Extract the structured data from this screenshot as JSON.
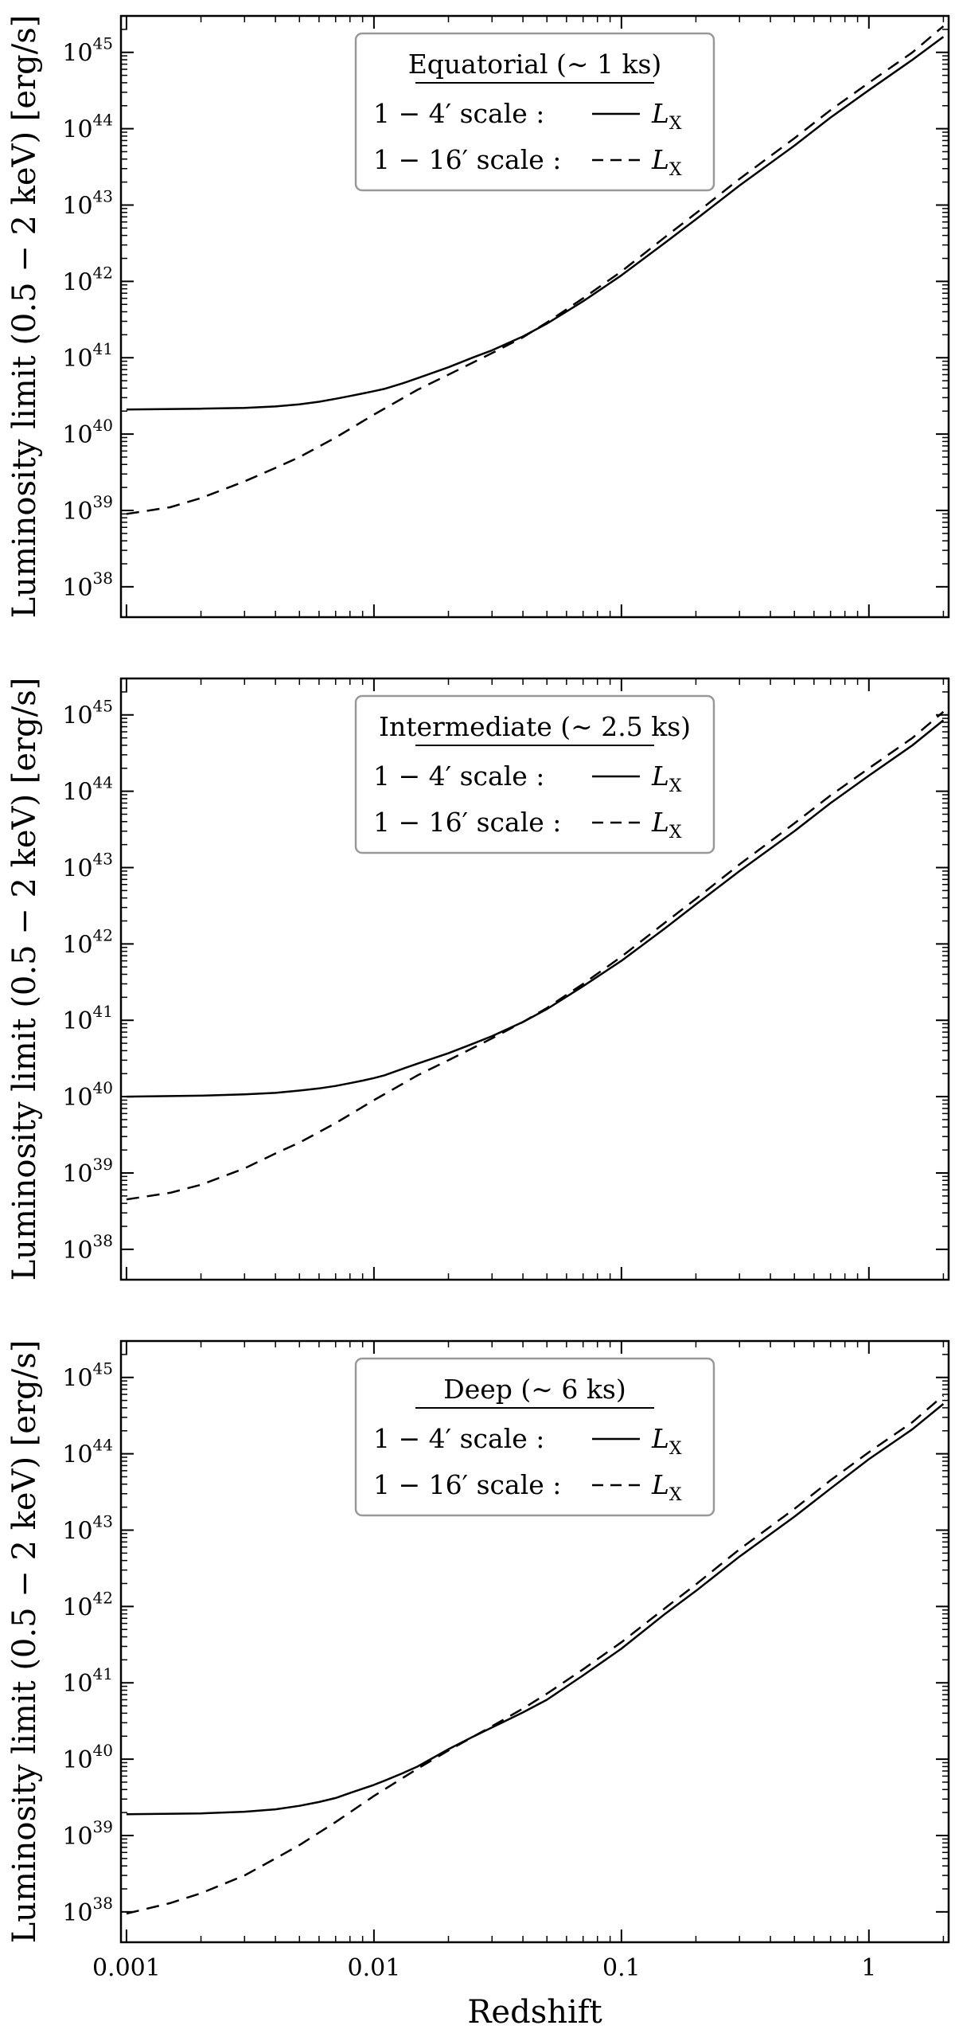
{
  "chart_data": [
    {
      "type": "line",
      "title": "Equatorial (∼ 1 ks)",
      "xlabel": "",
      "ylabel": "Luminosity limit  (0.5 − 2 keV)  [erg/s]",
      "x_scale": "log",
      "y_scale": "log",
      "xlim": [
        0.00095,
        2.1
      ],
      "ylim": [
        4e+37,
        3e+45
      ],
      "x_ticks": [
        0.001,
        0.01,
        0.1,
        1
      ],
      "x_tick_labels": [],
      "y_ticks": [
        1e+38,
        1e+39,
        1e+40,
        1e+41,
        1e+42,
        1e+43,
        1e+44,
        1e+45
      ],
      "y_tick_labels": [
        {
          "base": "10",
          "exp": "38"
        },
        {
          "base": "10",
          "exp": "39"
        },
        {
          "base": "10",
          "exp": "40"
        },
        {
          "base": "10",
          "exp": "41"
        },
        {
          "base": "10",
          "exp": "42"
        },
        {
          "base": "10",
          "exp": "43"
        },
        {
          "base": "10",
          "exp": "44"
        },
        {
          "base": "10",
          "exp": "45"
        }
      ],
      "legend_position": "top-center",
      "legend": [
        {
          "label": "1 − 4′   scale :",
          "key": "L",
          "key_sub": "X",
          "style": "solid"
        },
        {
          "label": "1 − 16′ scale :",
          "key": "L",
          "key_sub": "X",
          "style": "dashed"
        }
      ],
      "series": [
        {
          "style": "solid",
          "x": [
            0.001,
            0.002,
            0.003,
            0.004,
            0.005,
            0.006,
            0.007,
            0.008,
            0.009,
            0.01,
            0.011,
            0.013,
            0.015,
            0.02,
            0.025,
            0.03,
            0.04,
            0.05,
            0.07,
            0.1,
            0.15,
            0.2,
            0.3,
            0.5,
            0.7,
            1.0,
            1.5,
            2.0
          ],
          "y": [
            2.1e+40,
            2.15e+40,
            2.2e+40,
            2.3e+40,
            2.45e+40,
            2.65e+40,
            2.9e+40,
            3.15e+40,
            3.4e+40,
            3.65e+40,
            3.9e+40,
            4.6e+40,
            5.4e+40,
            7.5e+40,
            1e+41,
            1.25e+41,
            1.9e+41,
            2.8e+41,
            5.5e+41,
            1.2e+42,
            3.2e+42,
            6.5e+42,
            1.8e+43,
            6e+43,
            1.4e+44,
            3.2e+44,
            8e+44,
            1.6e+45
          ]
        },
        {
          "style": "dashed",
          "x": [
            0.001,
            0.0015,
            0.002,
            0.003,
            0.004,
            0.005,
            0.007,
            0.01,
            0.015,
            0.02,
            0.03,
            0.04,
            0.05,
            0.07,
            0.1,
            0.15,
            0.2,
            0.3,
            0.5,
            0.7,
            1.0,
            1.5,
            2.0
          ],
          "y": [
            9e+38,
            1.1e+39,
            1.45e+39,
            2.4e+39,
            3.6e+39,
            5e+39,
            9e+39,
            1.8e+40,
            3.8e+40,
            6e+40,
            1.15e+41,
            1.85e+41,
            2.9e+41,
            6e+41,
            1.35e+42,
            3.8e+42,
            7.8e+42,
            2.2e+43,
            7.5e+43,
            1.75e+44,
            4e+44,
            1e+45,
            2.2e+45
          ]
        }
      ]
    },
    {
      "type": "line",
      "title": "Intermediate (∼ 2.5 ks)",
      "xlabel": "",
      "ylabel": "Luminosity limit  (0.5 − 2 keV)  [erg/s]",
      "x_scale": "log",
      "y_scale": "log",
      "xlim": [
        0.00095,
        2.1
      ],
      "ylim": [
        4e+37,
        3e+45
      ],
      "x_ticks": [
        0.001,
        0.01,
        0.1,
        1
      ],
      "x_tick_labels": [],
      "y_ticks": [
        1e+38,
        1e+39,
        1e+40,
        1e+41,
        1e+42,
        1e+43,
        1e+44,
        1e+45
      ],
      "y_tick_labels": [
        {
          "base": "10",
          "exp": "38"
        },
        {
          "base": "10",
          "exp": "39"
        },
        {
          "base": "10",
          "exp": "40"
        },
        {
          "base": "10",
          "exp": "41"
        },
        {
          "base": "10",
          "exp": "42"
        },
        {
          "base": "10",
          "exp": "43"
        },
        {
          "base": "10",
          "exp": "44"
        },
        {
          "base": "10",
          "exp": "45"
        }
      ],
      "legend_position": "top-center",
      "legend": [
        {
          "label": "1 − 4′   scale :",
          "key": "L",
          "key_sub": "X",
          "style": "solid"
        },
        {
          "label": "1 − 16′ scale :",
          "key": "L",
          "key_sub": "X",
          "style": "dashed"
        }
      ],
      "series": [
        {
          "style": "solid",
          "x": [
            0.001,
            0.002,
            0.003,
            0.004,
            0.005,
            0.006,
            0.007,
            0.008,
            0.009,
            0.01,
            0.011,
            0.013,
            0.015,
            0.02,
            0.025,
            0.03,
            0.04,
            0.05,
            0.07,
            0.1,
            0.15,
            0.2,
            0.3,
            0.5,
            0.7,
            1.0,
            1.5,
            2.0
          ],
          "y": [
            1e+40,
            1.03e+40,
            1.07e+40,
            1.12e+40,
            1.2e+40,
            1.28e+40,
            1.38e+40,
            1.5e+40,
            1.62e+40,
            1.75e+40,
            1.9e+40,
            2.3e+40,
            2.7e+40,
            3.7e+40,
            4.9e+40,
            6.2e+40,
            9.5e+40,
            1.4e+41,
            2.8e+41,
            6e+41,
            1.6e+42,
            3.3e+42,
            9e+42,
            3e+43,
            7e+43,
            1.6e+44,
            4e+44,
            8.5e+44
          ]
        },
        {
          "style": "dashed",
          "x": [
            0.001,
            0.0015,
            0.002,
            0.003,
            0.004,
            0.005,
            0.007,
            0.01,
            0.015,
            0.02,
            0.03,
            0.04,
            0.05,
            0.07,
            0.1,
            0.15,
            0.2,
            0.3,
            0.5,
            0.7,
            1.0,
            1.5,
            2.0
          ],
          "y": [
            4.5e+38,
            5.5e+38,
            7e+38,
            1.15e+39,
            1.8e+39,
            2.5e+39,
            4.5e+39,
            9e+39,
            1.9e+40,
            3e+40,
            5.8e+40,
            9.5e+40,
            1.45e+41,
            3e+41,
            6.8e+41,
            1.9e+42,
            3.9e+42,
            1.1e+43,
            3.8e+43,
            8.8e+43,
            2e+44,
            5e+44,
            1.1e+45
          ]
        }
      ]
    },
    {
      "type": "line",
      "title": "Deep (∼ 6 ks)",
      "xlabel": "Redshift",
      "ylabel": "Luminosity limit  (0.5 − 2 keV)  [erg/s]",
      "x_scale": "log",
      "y_scale": "log",
      "xlim": [
        0.00095,
        2.1
      ],
      "ylim": [
        4e+37,
        3e+45
      ],
      "x_ticks": [
        0.001,
        0.01,
        0.1,
        1
      ],
      "x_tick_labels": [
        "0.001",
        "0.01",
        "0.1",
        "1"
      ],
      "y_ticks": [
        1e+38,
        1e+39,
        1e+40,
        1e+41,
        1e+42,
        1e+43,
        1e+44,
        1e+45
      ],
      "y_tick_labels": [
        {
          "base": "10",
          "exp": "38"
        },
        {
          "base": "10",
          "exp": "39"
        },
        {
          "base": "10",
          "exp": "40"
        },
        {
          "base": "10",
          "exp": "41"
        },
        {
          "base": "10",
          "exp": "42"
        },
        {
          "base": "10",
          "exp": "43"
        },
        {
          "base": "10",
          "exp": "44"
        },
        {
          "base": "10",
          "exp": "45"
        }
      ],
      "legend_position": "top-center",
      "legend": [
        {
          "label": "1 − 4′   scale :",
          "key": "L",
          "key_sub": "X",
          "style": "solid"
        },
        {
          "label": "1 − 16′ scale :",
          "key": "L",
          "key_sub": "X",
          "style": "dashed"
        }
      ],
      "series": [
        {
          "style": "solid",
          "x": [
            0.001,
            0.002,
            0.003,
            0.004,
            0.005,
            0.006,
            0.007,
            0.008,
            0.009,
            0.01,
            0.011,
            0.013,
            0.015,
            0.02,
            0.025,
            0.03,
            0.04,
            0.05,
            0.07,
            0.1,
            0.15,
            0.2,
            0.3,
            0.5,
            0.7,
            1.0,
            1.5,
            2.0
          ],
          "y": [
            1.9e+39,
            1.95e+39,
            2.05e+39,
            2.2e+39,
            2.45e+39,
            2.75e+39,
            3.1e+39,
            3.6e+39,
            4.1e+39,
            4.6e+39,
            5.2e+39,
            6.5e+39,
            8e+39,
            1.35e+40,
            1.95e+40,
            2.6e+40,
            4.1e+40,
            6e+40,
            1.25e+41,
            2.8e+41,
            8e+41,
            1.6e+42,
            4.5e+42,
            1.5e+43,
            3.5e+43,
            8.5e+43,
            2.1e+44,
            4.5e+44
          ]
        },
        {
          "style": "dashed",
          "x": [
            0.001,
            0.0015,
            0.002,
            0.003,
            0.004,
            0.005,
            0.007,
            0.01,
            0.015,
            0.02,
            0.03,
            0.04,
            0.05,
            0.07,
            0.1,
            0.15,
            0.2,
            0.3,
            0.5,
            0.7,
            1.0,
            1.5,
            2.0
          ],
          "y": [
            9.5e+37,
            1.3e+38,
            1.75e+38,
            3e+38,
            5e+38,
            7.5e+38,
            1.5e+39,
            3.3e+39,
            7.5e+39,
            1.3e+40,
            2.7e+40,
            4.6e+40,
            7.2e+40,
            1.5e+41,
            3.4e+41,
            9.5e+41,
            1.95e+42,
            5.6e+42,
            1.9e+43,
            4.5e+43,
            1.05e+44,
            2.6e+44,
            5.8e+44
          ]
        }
      ]
    }
  ]
}
